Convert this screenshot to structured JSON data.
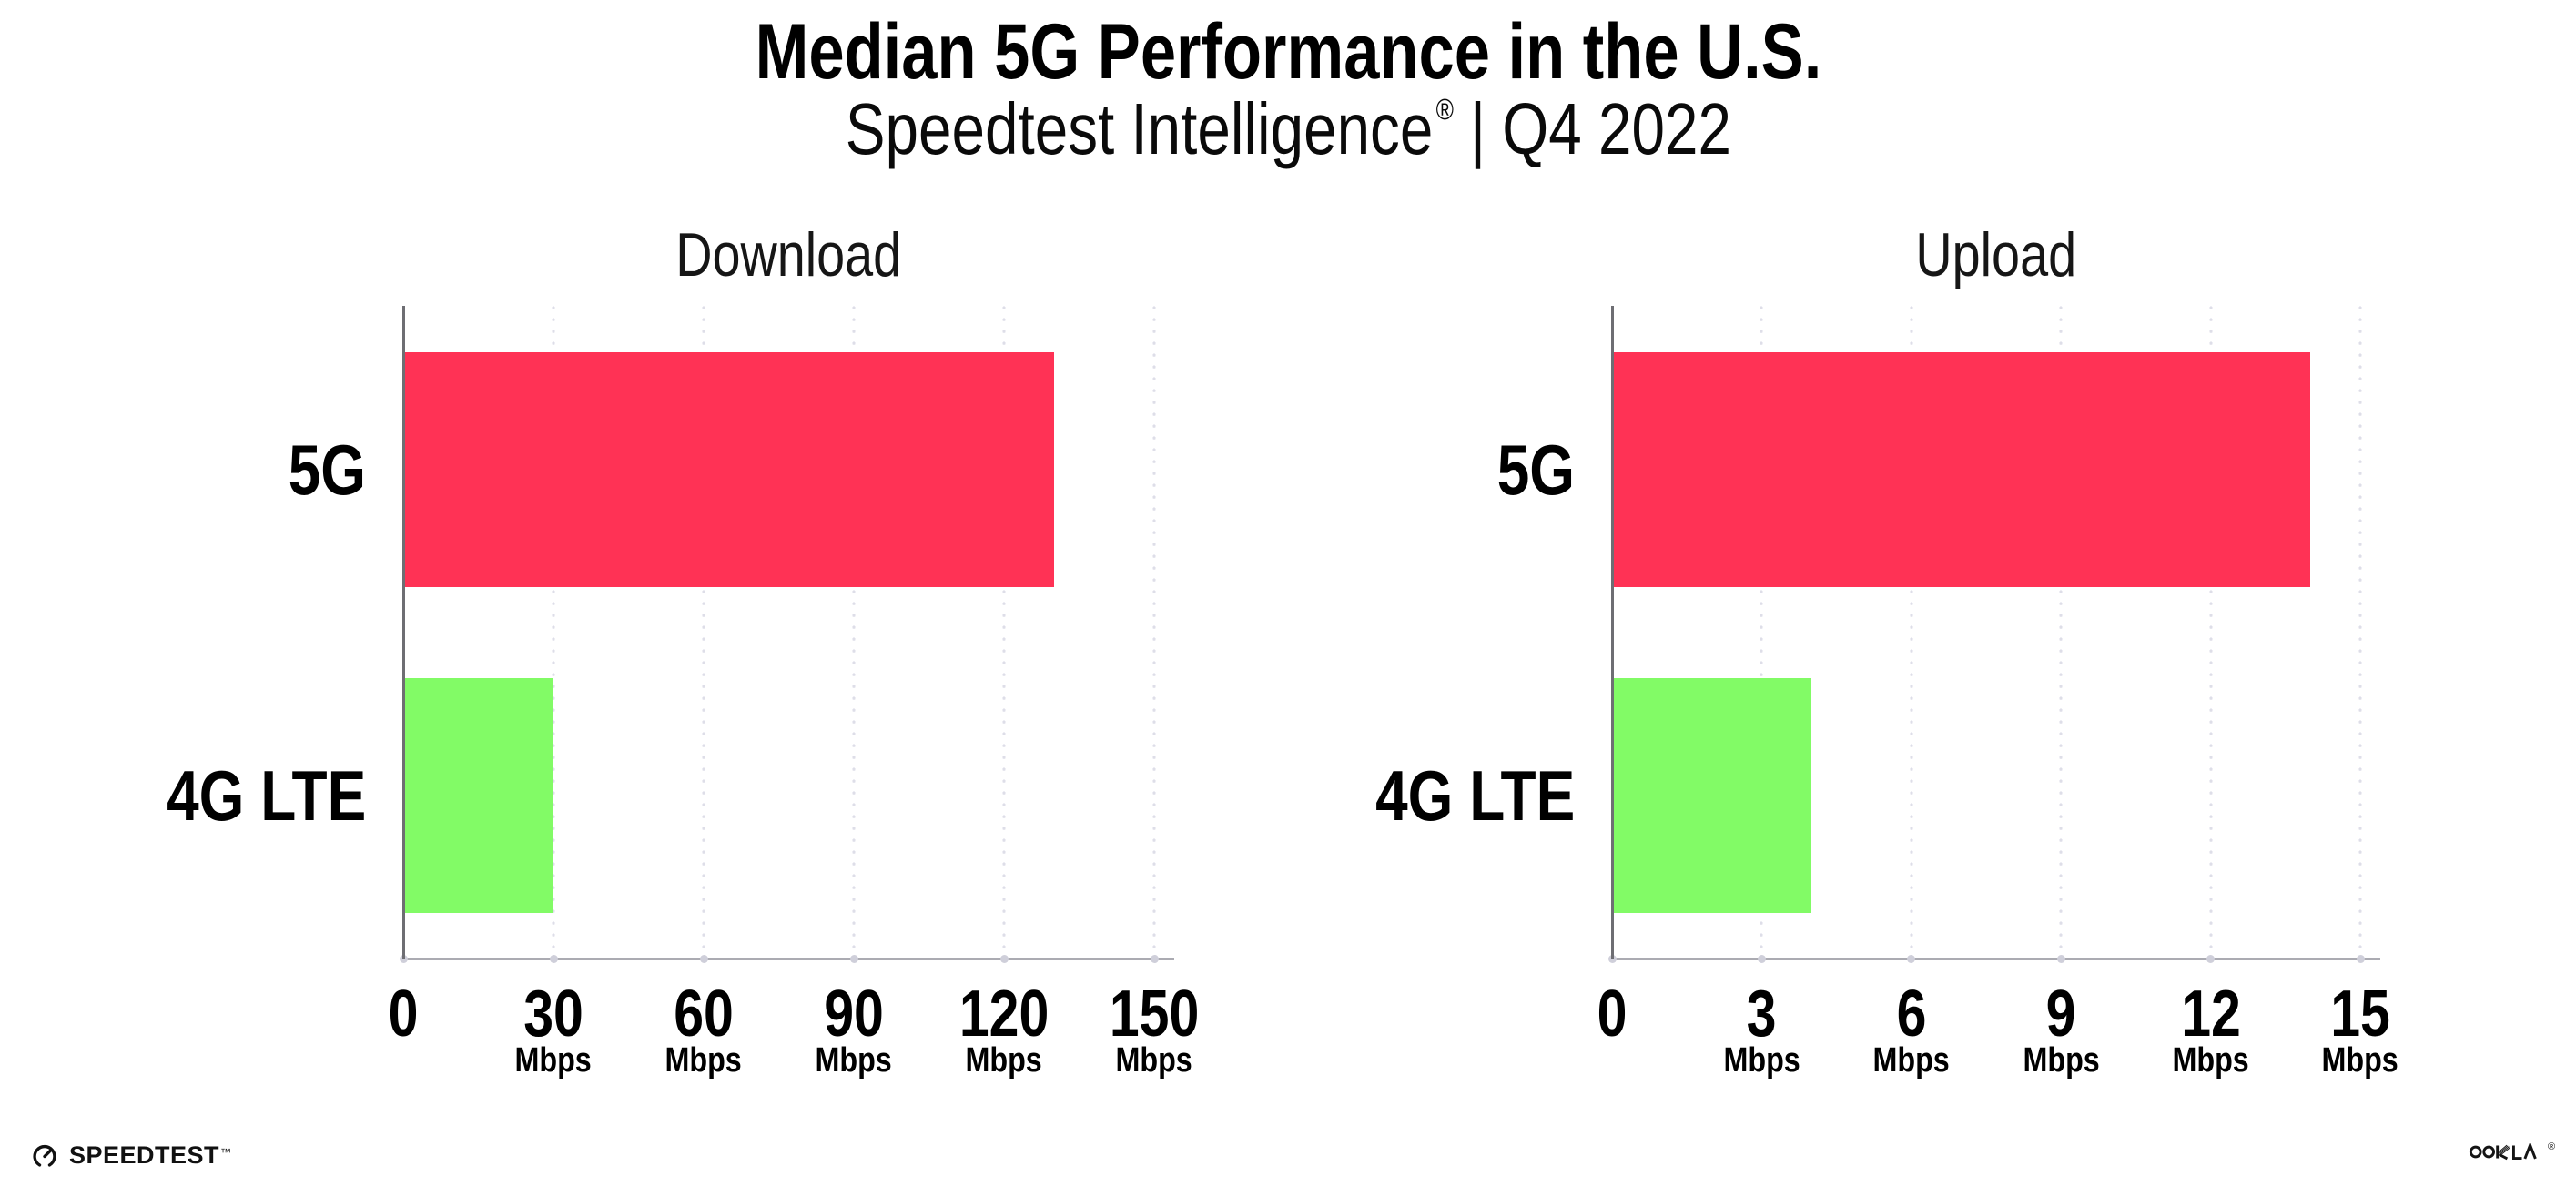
{
  "header": {
    "title": "Median 5G Performance in the U.S.",
    "subtitle_brand": "Speedtest Intelligence",
    "subtitle_reg": "®",
    "subtitle_rest": "| Q4 2022"
  },
  "footer": {
    "speedtest_label": "SPEEDTEST",
    "speedtest_tm": "™",
    "ookla_label": "OOKLA",
    "ookla_reg": "®"
  },
  "colors": {
    "bar_5g": "#FF3255",
    "bar_4g": "#82FB66",
    "spine": "#6E6E73",
    "axis_line": "#ABABB2",
    "gridline_dot": "#DEDEE8",
    "tick_dot": "#CFCFDA"
  },
  "chart_data": [
    {
      "type": "bar",
      "orientation": "horizontal",
      "title": "Download",
      "categories": [
        "5G",
        "4G LTE"
      ],
      "values": [
        130,
        30
      ],
      "unit": "Mbps",
      "bar_colors": [
        "#FF3255",
        "#82FB66"
      ],
      "ticks": [
        0,
        30,
        60,
        90,
        120,
        150
      ],
      "tick_unit": "Mbps",
      "unit_on_zero": false,
      "xlim": [
        0,
        154
      ],
      "grid": "dotted-vertical",
      "legend": "none"
    },
    {
      "type": "bar",
      "orientation": "horizontal",
      "title": "Upload",
      "categories": [
        "5G",
        "4G LTE"
      ],
      "values": [
        14,
        4
      ],
      "unit": "Mbps",
      "bar_colors": [
        "#FF3255",
        "#82FB66"
      ],
      "ticks": [
        0,
        3,
        6,
        9,
        12,
        15
      ],
      "tick_unit": "Mbps",
      "unit_on_zero": false,
      "xlim": [
        0,
        15.4
      ],
      "grid": "dotted-vertical",
      "legend": "none"
    }
  ]
}
